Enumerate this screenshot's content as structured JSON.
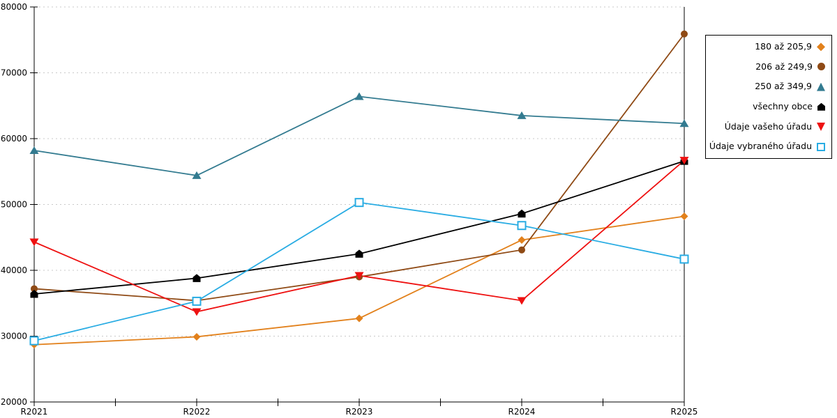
{
  "chart_data": {
    "type": "line",
    "title": "",
    "xlabel": "",
    "ylabel": "",
    "categories": [
      "R2021",
      "R2022",
      "R2023",
      "R2024",
      "R2025"
    ],
    "y_axis": {
      "min": 20000,
      "max": 80000,
      "step": 10000,
      "tick_labels": [
        "20000",
        "30000",
        "40000",
        "50000",
        "60000",
        "70000",
        "80000"
      ]
    },
    "grid": "horizontal-dashed",
    "legend_position": "right-outside",
    "series": [
      {
        "name": "180 až 205,9",
        "marker": "diamond",
        "color": "#E2811C",
        "values": [
          28700,
          29900,
          32700,
          44600,
          48200
        ]
      },
      {
        "name": "206 až 249,9",
        "marker": "circle",
        "color": "#8F4A15",
        "values": [
          37200,
          35400,
          39000,
          43100,
          75900
        ]
      },
      {
        "name": "250 až 349,9",
        "marker": "triangle-up",
        "color": "#337B90",
        "values": [
          58200,
          54400,
          66400,
          63500,
          62300
        ]
      },
      {
        "name": "všechny obce",
        "marker": "pentagon",
        "color": "#000000",
        "values": [
          36400,
          38800,
          42500,
          48600,
          56600
        ]
      },
      {
        "name": "Údaje vašeho úřadu",
        "marker": "triangle-down",
        "color": "#EE1111",
        "values": [
          44300,
          33700,
          39200,
          35400,
          56700
        ]
      },
      {
        "name": "Údaje vybraného úřadu",
        "marker": "square-open",
        "color": "#29ACE3",
        "values": [
          29300,
          35300,
          50300,
          46800,
          41700
        ]
      }
    ]
  },
  "colors": {
    "grid": "#C8C8C8",
    "axis": "#000000",
    "background": "#FFFFFF"
  }
}
